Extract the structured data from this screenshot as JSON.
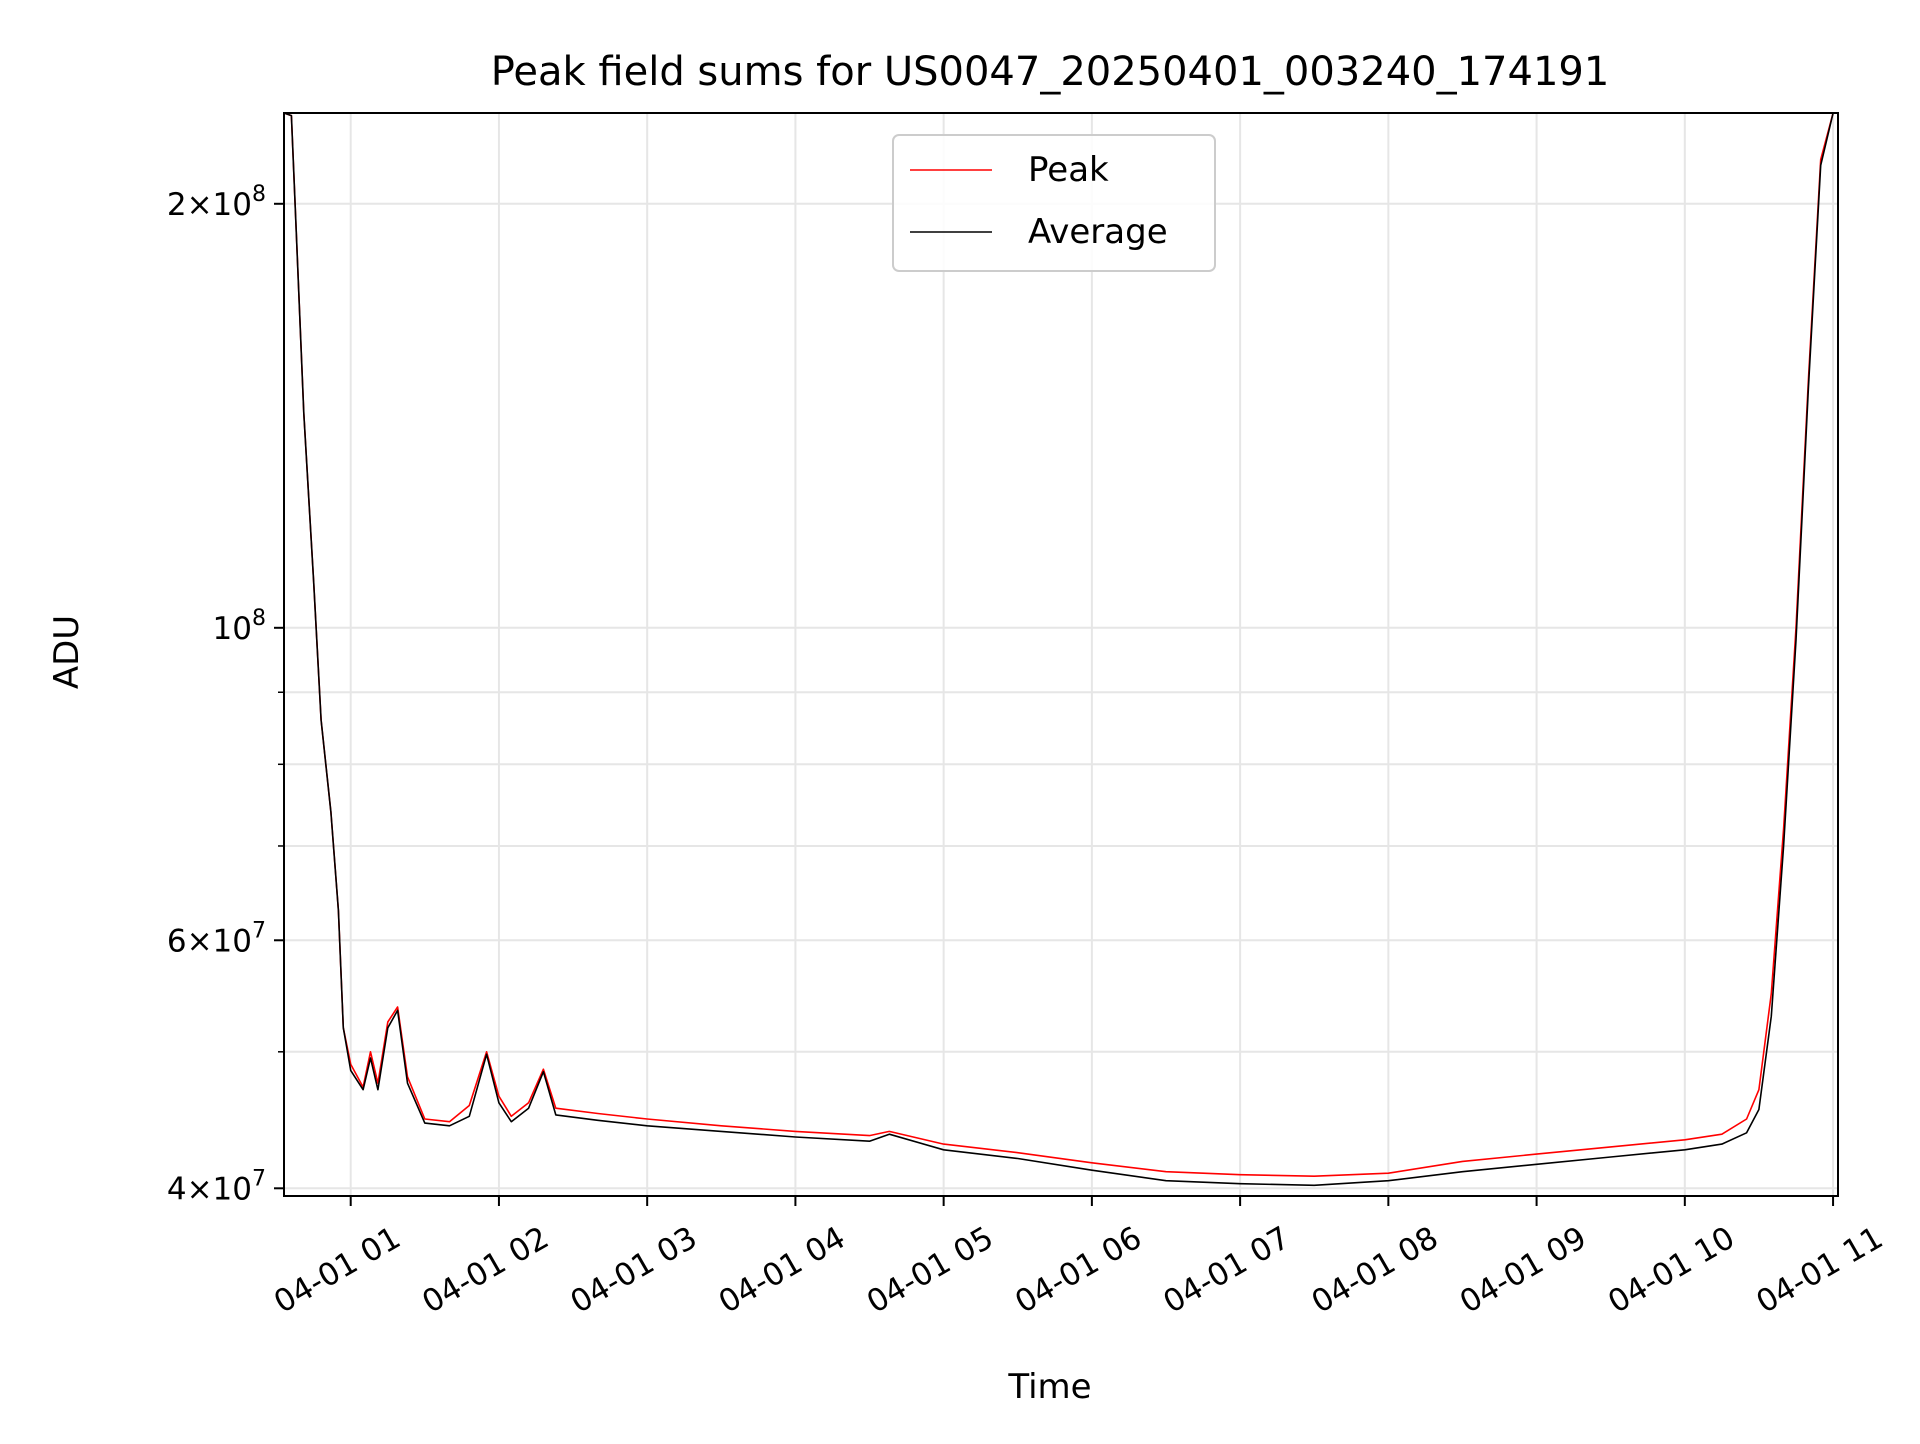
{
  "chart_data": {
    "type": "line",
    "title": "Peak field sums for US0047_20250401_003240_174191",
    "xlabel": "Time",
    "ylabel": "ADU",
    "y_scale": "log",
    "ylim": [
      39500000,
      232000000
    ],
    "xlim": [
      "2025-04-01 00:33",
      "2025-04-01 11:02"
    ],
    "grid": true,
    "legend_position": "upper center",
    "x_ticks": [
      {
        "t": "2025-04-01 01:00",
        "label": "04-01 01"
      },
      {
        "t": "2025-04-01 02:00",
        "label": "04-01 02"
      },
      {
        "t": "2025-04-01 03:00",
        "label": "04-01 03"
      },
      {
        "t": "2025-04-01 04:00",
        "label": "04-01 04"
      },
      {
        "t": "2025-04-01 05:00",
        "label": "04-01 05"
      },
      {
        "t": "2025-04-01 06:00",
        "label": "04-01 06"
      },
      {
        "t": "2025-04-01 07:00",
        "label": "04-01 07"
      },
      {
        "t": "2025-04-01 08:00",
        "label": "04-01 08"
      },
      {
        "t": "2025-04-01 09:00",
        "label": "04-01 09"
      },
      {
        "t": "2025-04-01 10:00",
        "label": "04-01 10"
      },
      {
        "t": "2025-04-01 11:00",
        "label": "04-01 11"
      }
    ],
    "y_ticks": [
      {
        "value": 40000000,
        "mantissa": "4",
        "exponent": "7"
      },
      {
        "value": 60000000,
        "mantissa": "6",
        "exponent": "7"
      },
      {
        "value": 100000000,
        "mantissa": "",
        "exponent": "8"
      },
      {
        "value": 200000000,
        "mantissa": "2",
        "exponent": "8"
      }
    ],
    "y_minor_ticks": [
      50000000,
      70000000,
      80000000,
      90000000
    ],
    "series": [
      {
        "name": "Peak",
        "color": "#ff0000",
        "points": [
          [
            "2025-04-01 00:33",
            232000000
          ],
          [
            "2025-04-01 00:36",
            231000000
          ],
          [
            "2025-04-01 00:38",
            190000000
          ],
          [
            "2025-04-01 00:41",
            142000000
          ],
          [
            "2025-04-01 00:45",
            108000000
          ],
          [
            "2025-04-01 00:48",
            86000000
          ],
          [
            "2025-04-01 00:52",
            74000000
          ],
          [
            "2025-04-01 00:55",
            63000000
          ],
          [
            "2025-04-01 00:57",
            52000000
          ],
          [
            "2025-04-01 01:00",
            49000000
          ],
          [
            "2025-04-01 01:05",
            47200000
          ],
          [
            "2025-04-01 01:08",
            50000000
          ],
          [
            "2025-04-01 01:11",
            47500000
          ],
          [
            "2025-04-01 01:15",
            52500000
          ],
          [
            "2025-04-01 01:19",
            53800000
          ],
          [
            "2025-04-01 01:23",
            48000000
          ],
          [
            "2025-04-01 01:30",
            44800000
          ],
          [
            "2025-04-01 01:40",
            44600000
          ],
          [
            "2025-04-01 01:48",
            45800000
          ],
          [
            "2025-04-01 01:55",
            50000000
          ],
          [
            "2025-04-01 02:00",
            46500000
          ],
          [
            "2025-04-01 02:05",
            45000000
          ],
          [
            "2025-04-01 02:12",
            46000000
          ],
          [
            "2025-04-01 02:18",
            48600000
          ],
          [
            "2025-04-01 02:23",
            45600000
          ],
          [
            "2025-04-01 02:40",
            45200000
          ],
          [
            "2025-04-01 03:00",
            44800000
          ],
          [
            "2025-04-01 03:30",
            44300000
          ],
          [
            "2025-04-01 04:00",
            43900000
          ],
          [
            "2025-04-01 04:30",
            43600000
          ],
          [
            "2025-04-01 04:38",
            43900000
          ],
          [
            "2025-04-01 05:00",
            43000000
          ],
          [
            "2025-04-01 05:30",
            42400000
          ],
          [
            "2025-04-01 06:00",
            41700000
          ],
          [
            "2025-04-01 06:30",
            41100000
          ],
          [
            "2025-04-01 07:00",
            40900000
          ],
          [
            "2025-04-01 07:30",
            40800000
          ],
          [
            "2025-04-01 08:00",
            41000000
          ],
          [
            "2025-04-01 08:30",
            41800000
          ],
          [
            "2025-04-01 09:00",
            42300000
          ],
          [
            "2025-04-01 09:30",
            42800000
          ],
          [
            "2025-04-01 10:00",
            43300000
          ],
          [
            "2025-04-01 10:15",
            43700000
          ],
          [
            "2025-04-01 10:25",
            44800000
          ],
          [
            "2025-04-01 10:30",
            47000000
          ],
          [
            "2025-04-01 10:35",
            55000000
          ],
          [
            "2025-04-01 10:40",
            72000000
          ],
          [
            "2025-04-01 10:45",
            100000000
          ],
          [
            "2025-04-01 10:50",
            150000000
          ],
          [
            "2025-04-01 10:55",
            215000000
          ],
          [
            "2025-04-01 11:00",
            232000000
          ]
        ]
      },
      {
        "name": "Average",
        "color": "#000000",
        "points": [
          [
            "2025-04-01 00:33",
            232000000
          ],
          [
            "2025-04-01 00:36",
            231000000
          ],
          [
            "2025-04-01 00:38",
            190000000
          ],
          [
            "2025-04-01 00:41",
            142000000
          ],
          [
            "2025-04-01 00:45",
            108000000
          ],
          [
            "2025-04-01 00:48",
            86000000
          ],
          [
            "2025-04-01 00:52",
            74000000
          ],
          [
            "2025-04-01 00:55",
            63000000
          ],
          [
            "2025-04-01 00:57",
            52000000
          ],
          [
            "2025-04-01 01:00",
            48500000
          ],
          [
            "2025-04-01 01:05",
            47000000
          ],
          [
            "2025-04-01 01:08",
            49500000
          ],
          [
            "2025-04-01 01:11",
            47000000
          ],
          [
            "2025-04-01 01:15",
            52000000
          ],
          [
            "2025-04-01 01:19",
            53500000
          ],
          [
            "2025-04-01 01:23",
            47500000
          ],
          [
            "2025-04-01 01:30",
            44500000
          ],
          [
            "2025-04-01 01:40",
            44300000
          ],
          [
            "2025-04-01 01:48",
            45000000
          ],
          [
            "2025-04-01 01:55",
            49800000
          ],
          [
            "2025-04-01 02:00",
            46000000
          ],
          [
            "2025-04-01 02:05",
            44600000
          ],
          [
            "2025-04-01 02:12",
            45600000
          ],
          [
            "2025-04-01 02:18",
            48400000
          ],
          [
            "2025-04-01 02:23",
            45100000
          ],
          [
            "2025-04-01 02:40",
            44700000
          ],
          [
            "2025-04-01 03:00",
            44300000
          ],
          [
            "2025-04-01 03:30",
            43900000
          ],
          [
            "2025-04-01 04:00",
            43500000
          ],
          [
            "2025-04-01 04:30",
            43200000
          ],
          [
            "2025-04-01 04:38",
            43700000
          ],
          [
            "2025-04-01 05:00",
            42600000
          ],
          [
            "2025-04-01 05:30",
            42000000
          ],
          [
            "2025-04-01 06:00",
            41200000
          ],
          [
            "2025-04-01 06:30",
            40500000
          ],
          [
            "2025-04-01 07:00",
            40300000
          ],
          [
            "2025-04-01 07:30",
            40200000
          ],
          [
            "2025-04-01 08:00",
            40500000
          ],
          [
            "2025-04-01 08:30",
            41100000
          ],
          [
            "2025-04-01 09:00",
            41600000
          ],
          [
            "2025-04-01 09:30",
            42100000
          ],
          [
            "2025-04-01 10:00",
            42600000
          ],
          [
            "2025-04-01 10:15",
            43000000
          ],
          [
            "2025-04-01 10:25",
            43800000
          ],
          [
            "2025-04-01 10:30",
            45500000
          ],
          [
            "2025-04-01 10:35",
            53000000
          ],
          [
            "2025-04-01 10:40",
            70000000
          ],
          [
            "2025-04-01 10:45",
            98000000
          ],
          [
            "2025-04-01 10:50",
            148000000
          ],
          [
            "2025-04-01 10:55",
            213000000
          ],
          [
            "2025-04-01 11:00",
            232000000
          ]
        ]
      }
    ]
  }
}
